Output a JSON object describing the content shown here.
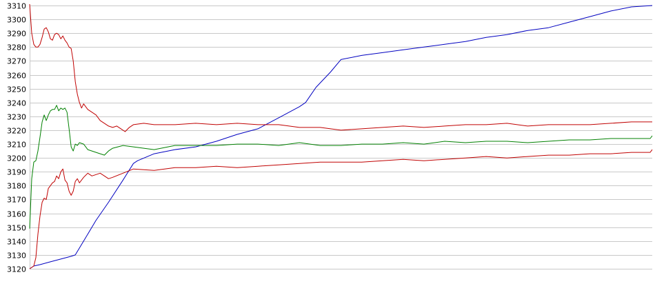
{
  "chart_data": {
    "type": "line",
    "title": "",
    "xlabel": "",
    "ylabel": "",
    "ylim": [
      3120,
      3310
    ],
    "xlim": [
      0,
      300
    ],
    "grid": true,
    "legend": "none",
    "yticks": [
      3120,
      3130,
      3140,
      3150,
      3160,
      3170,
      3180,
      3190,
      3200,
      3210,
      3220,
      3230,
      3240,
      3250,
      3260,
      3270,
      3280,
      3290,
      3300,
      3310
    ],
    "series": [
      {
        "color": "#0000c0",
        "points": [
          [
            0,
            3120
          ],
          [
            2,
            3122
          ],
          [
            5,
            3123
          ],
          [
            10,
            3125
          ],
          [
            15,
            3127
          ],
          [
            20,
            3129
          ],
          [
            22,
            3130
          ],
          [
            26,
            3140
          ],
          [
            32,
            3155
          ],
          [
            38,
            3168
          ],
          [
            45,
            3184
          ],
          [
            50,
            3196
          ],
          [
            52,
            3198
          ],
          [
            60,
            3203
          ],
          [
            70,
            3206
          ],
          [
            80,
            3208
          ],
          [
            90,
            3212
          ],
          [
            100,
            3217
          ],
          [
            110,
            3221
          ],
          [
            120,
            3229
          ],
          [
            130,
            3237
          ],
          [
            133,
            3240
          ],
          [
            138,
            3251
          ],
          [
            145,
            3262
          ],
          [
            150,
            3271
          ],
          [
            160,
            3274
          ],
          [
            170,
            3276
          ],
          [
            180,
            3278
          ],
          [
            190,
            3280
          ],
          [
            200,
            3282
          ],
          [
            210,
            3284
          ],
          [
            220,
            3287
          ],
          [
            230,
            3289
          ],
          [
            240,
            3292
          ],
          [
            250,
            3294
          ],
          [
            260,
            3298
          ],
          [
            270,
            3302
          ],
          [
            280,
            3306
          ],
          [
            290,
            3309
          ],
          [
            300,
            3310
          ]
        ]
      },
      {
        "color": "#c00000",
        "points": [
          [
            0,
            3311
          ],
          [
            1,
            3290
          ],
          [
            2,
            3282
          ],
          [
            3,
            3280
          ],
          [
            4,
            3280
          ],
          [
            5,
            3282
          ],
          [
            6,
            3287
          ],
          [
            7,
            3293
          ],
          [
            8,
            3294
          ],
          [
            9,
            3291
          ],
          [
            10,
            3286
          ],
          [
            11,
            3285
          ],
          [
            12,
            3289
          ],
          [
            13,
            3290
          ],
          [
            14,
            3289
          ],
          [
            15,
            3286
          ],
          [
            16,
            3288
          ],
          [
            17,
            3285
          ],
          [
            18,
            3283
          ],
          [
            19,
            3280
          ],
          [
            20,
            3279
          ],
          [
            21,
            3270
          ],
          [
            22,
            3255
          ],
          [
            23,
            3246
          ],
          [
            24,
            3240
          ],
          [
            25,
            3236
          ],
          [
            26,
            3239
          ],
          [
            27,
            3237
          ],
          [
            28,
            3235
          ],
          [
            30,
            3233
          ],
          [
            32,
            3231
          ],
          [
            34,
            3227
          ],
          [
            36,
            3225
          ],
          [
            38,
            3223
          ],
          [
            40,
            3222
          ],
          [
            42,
            3223
          ],
          [
            44,
            3221
          ],
          [
            46,
            3219
          ],
          [
            48,
            3222
          ],
          [
            50,
            3224
          ],
          [
            55,
            3225
          ],
          [
            60,
            3224
          ],
          [
            70,
            3224
          ],
          [
            80,
            3225
          ],
          [
            90,
            3224
          ],
          [
            100,
            3225
          ],
          [
            110,
            3224
          ],
          [
            120,
            3224
          ],
          [
            130,
            3222
          ],
          [
            140,
            3222
          ],
          [
            150,
            3220
          ],
          [
            160,
            3221
          ],
          [
            170,
            3222
          ],
          [
            180,
            3223
          ],
          [
            190,
            3222
          ],
          [
            200,
            3223
          ],
          [
            210,
            3224
          ],
          [
            220,
            3224
          ],
          [
            230,
            3225
          ],
          [
            240,
            3223
          ],
          [
            250,
            3224
          ],
          [
            260,
            3224
          ],
          [
            270,
            3224
          ],
          [
            280,
            3225
          ],
          [
            290,
            3226
          ],
          [
            300,
            3226
          ]
        ]
      },
      {
        "color": "#008000",
        "points": [
          [
            0,
            3149
          ],
          [
            1,
            3185
          ],
          [
            2,
            3197
          ],
          [
            3,
            3198
          ],
          [
            4,
            3205
          ],
          [
            5,
            3215
          ],
          [
            6,
            3226
          ],
          [
            7,
            3231
          ],
          [
            8,
            3227
          ],
          [
            9,
            3231
          ],
          [
            10,
            3234
          ],
          [
            11,
            3235
          ],
          [
            12,
            3235
          ],
          [
            13,
            3238
          ],
          [
            14,
            3234
          ],
          [
            15,
            3236
          ],
          [
            16,
            3235
          ],
          [
            17,
            3236
          ],
          [
            18,
            3233
          ],
          [
            19,
            3221
          ],
          [
            20,
            3208
          ],
          [
            21,
            3205
          ],
          [
            22,
            3210
          ],
          [
            23,
            3209
          ],
          [
            24,
            3211
          ],
          [
            26,
            3210
          ],
          [
            28,
            3206
          ],
          [
            30,
            3205
          ],
          [
            32,
            3204
          ],
          [
            34,
            3203
          ],
          [
            36,
            3202
          ],
          [
            38,
            3205
          ],
          [
            40,
            3207
          ],
          [
            45,
            3209
          ],
          [
            50,
            3208
          ],
          [
            60,
            3206
          ],
          [
            70,
            3209
          ],
          [
            80,
            3209
          ],
          [
            90,
            3209
          ],
          [
            100,
            3210
          ],
          [
            110,
            3210
          ],
          [
            120,
            3209
          ],
          [
            130,
            3211
          ],
          [
            140,
            3209
          ],
          [
            150,
            3209
          ],
          [
            160,
            3210
          ],
          [
            170,
            3210
          ],
          [
            180,
            3211
          ],
          [
            190,
            3210
          ],
          [
            200,
            3212
          ],
          [
            210,
            3211
          ],
          [
            220,
            3212
          ],
          [
            230,
            3212
          ],
          [
            240,
            3211
          ],
          [
            250,
            3212
          ],
          [
            260,
            3213
          ],
          [
            270,
            3213
          ],
          [
            280,
            3214
          ],
          [
            290,
            3214
          ],
          [
            299,
            3214
          ],
          [
            300,
            3216
          ]
        ]
      },
      {
        "color": "#c00000",
        "points": [
          [
            0,
            3120
          ],
          [
            1,
            3121
          ],
          [
            2,
            3122
          ],
          [
            3,
            3128
          ],
          [
            4,
            3145
          ],
          [
            5,
            3158
          ],
          [
            6,
            3168
          ],
          [
            7,
            3171
          ],
          [
            8,
            3170
          ],
          [
            9,
            3178
          ],
          [
            10,
            3180
          ],
          [
            11,
            3182
          ],
          [
            12,
            3183
          ],
          [
            13,
            3187
          ],
          [
            14,
            3185
          ],
          [
            15,
            3190
          ],
          [
            16,
            3192
          ],
          [
            17,
            3184
          ],
          [
            18,
            3182
          ],
          [
            19,
            3176
          ],
          [
            20,
            3173
          ],
          [
            21,
            3176
          ],
          [
            22,
            3183
          ],
          [
            23,
            3185
          ],
          [
            24,
            3182
          ],
          [
            26,
            3186
          ],
          [
            28,
            3189
          ],
          [
            30,
            3187
          ],
          [
            32,
            3188
          ],
          [
            34,
            3189
          ],
          [
            36,
            3187
          ],
          [
            38,
            3185
          ],
          [
            40,
            3186
          ],
          [
            45,
            3189
          ],
          [
            50,
            3192
          ],
          [
            60,
            3191
          ],
          [
            70,
            3193
          ],
          [
            80,
            3193
          ],
          [
            90,
            3194
          ],
          [
            100,
            3193
          ],
          [
            110,
            3194
          ],
          [
            120,
            3195
          ],
          [
            130,
            3196
          ],
          [
            140,
            3197
          ],
          [
            150,
            3197
          ],
          [
            160,
            3197
          ],
          [
            170,
            3198
          ],
          [
            180,
            3199
          ],
          [
            190,
            3198
          ],
          [
            200,
            3199
          ],
          [
            210,
            3200
          ],
          [
            220,
            3201
          ],
          [
            230,
            3200
          ],
          [
            240,
            3201
          ],
          [
            250,
            3202
          ],
          [
            260,
            3202
          ],
          [
            270,
            3203
          ],
          [
            280,
            3203
          ],
          [
            290,
            3204
          ],
          [
            299,
            3204
          ],
          [
            300,
            3206
          ]
        ]
      }
    ]
  }
}
